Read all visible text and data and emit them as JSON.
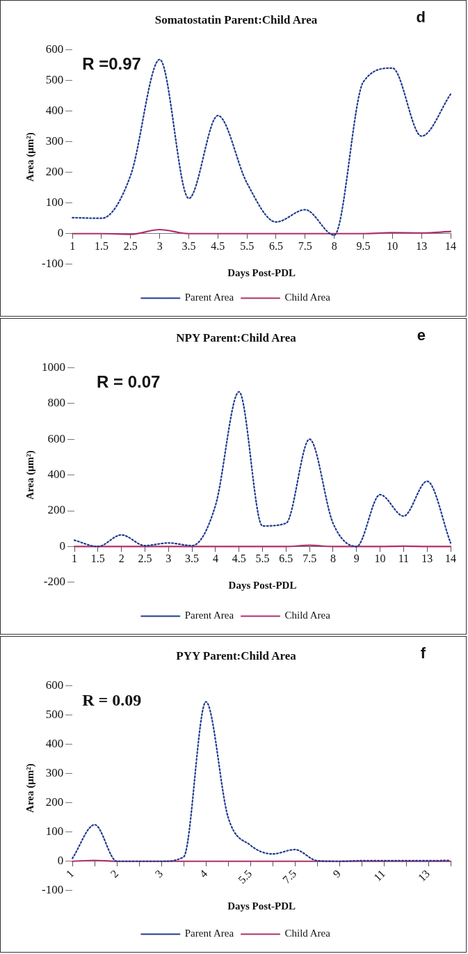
{
  "chart_data": [
    {
      "type": "line",
      "title": "Somatostatin Parent:Child Area",
      "xlabel": "Days Post-PDL",
      "ylabel": "Area (μm²)",
      "annotations": [
        "R =0.97",
        "d"
      ],
      "categories": [
        "1",
        "1.5",
        "2.5",
        "3",
        "3.5",
        "4.5",
        "5.5",
        "6.5",
        "7.5",
        "8",
        "9.5",
        "10",
        "13",
        "14"
      ],
      "series": [
        {
          "name": "Parent Area",
          "color": "#1f3a8f",
          "line_style": "dotted",
          "values": [
            52,
            50,
            190,
            568,
            115,
            385,
            165,
            38,
            78,
            -5,
            495,
            540,
            318,
            455
          ]
        },
        {
          "name": "Child Area",
          "color": "#b0306a",
          "line_style": "solid",
          "values": [
            0,
            0,
            -2,
            13,
            0,
            0,
            0,
            0,
            0,
            0,
            0,
            3,
            2,
            7
          ]
        }
      ],
      "ylim": [
        -100,
        600
      ],
      "yticks": [
        -100,
        0,
        100,
        200,
        300,
        400,
        500,
        600
      ],
      "grid": false,
      "legend": "bottom",
      "marker": "none"
    },
    {
      "type": "line",
      "title": "NPY Parent:Child Area",
      "xlabel": "Days Post-PDL",
      "ylabel": "Area (μm²)",
      "annotations": [
        "R = 0.07",
        "e"
      ],
      "categories": [
        "1",
        "1.5",
        "2",
        "2.5",
        "3",
        "3.5",
        "4",
        "4.5",
        "5.5",
        "6.5",
        "7.5",
        "8",
        "9",
        "10",
        "11",
        "13",
        "14"
      ],
      "series": [
        {
          "name": "Parent Area",
          "color": "#1f3a8f",
          "line_style": "dotted",
          "values": [
            35,
            0,
            65,
            5,
            20,
            5,
            230,
            865,
            115,
            130,
            600,
            130,
            0,
            290,
            170,
            365,
            20
          ]
        },
        {
          "name": "Child Area",
          "color": "#b0306a",
          "line_style": "solid",
          "values": [
            0,
            0,
            0,
            0,
            0,
            0,
            0,
            0,
            0,
            0,
            7,
            0,
            0,
            0,
            2,
            0,
            0
          ]
        }
      ],
      "ylim": [
        -200,
        1000
      ],
      "yticks": [
        -200,
        0,
        200,
        400,
        600,
        800,
        1000
      ],
      "grid": false,
      "legend": "bottom",
      "marker": "none"
    },
    {
      "type": "line",
      "title": "PYY Parent:Child Area",
      "xlabel": "Days Post-PDL",
      "ylabel": "Area (μm²)",
      "annotations": [
        "R = 0.09",
        "f"
      ],
      "categories": [
        "1",
        null,
        "2",
        null,
        "3",
        null,
        "4",
        null,
        "5.5",
        null,
        "7.5",
        null,
        "9",
        null,
        "11",
        null,
        "13",
        null
      ],
      "series": [
        {
          "name": "Parent Area",
          "color": "#1f3a8f",
          "line_style": "dotted",
          "values": [
            10,
            125,
            0,
            0,
            0,
            15,
            545,
            150,
            55,
            25,
            40,
            2,
            0,
            2,
            2,
            2,
            2,
            3
          ]
        },
        {
          "name": "Child Area",
          "color": "#b0306a",
          "line_style": "solid",
          "values": [
            0,
            3,
            0,
            0,
            0,
            0,
            0,
            0,
            0,
            0,
            0,
            0,
            0,
            0,
            0,
            0,
            0,
            0
          ]
        }
      ],
      "ylim": [
        -100,
        600
      ],
      "yticks": [
        -100,
        0,
        100,
        200,
        300,
        400,
        500,
        600
      ],
      "grid": false,
      "legend": "bottom",
      "marker": "none"
    }
  ]
}
